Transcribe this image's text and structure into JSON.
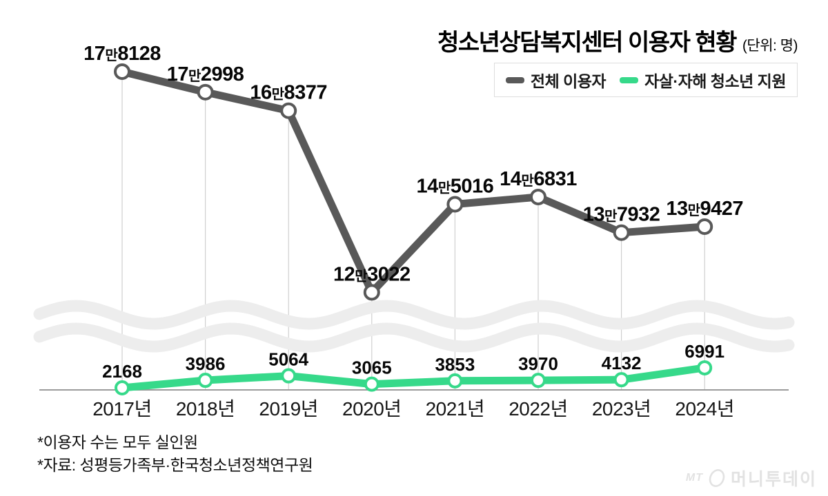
{
  "title": {
    "text": "청소년상담복지센터 이용자 현황",
    "unit": "(단위: 명)"
  },
  "legend": {
    "items": [
      {
        "label": "전체 이용자",
        "color": "#595959"
      },
      {
        "label": "자살·자해 청소년 지원",
        "color": "#36d98a"
      }
    ]
  },
  "chart_data": {
    "type": "line",
    "title": "청소년상담복지센터 이용자 현황",
    "unit": "명",
    "legend_position": "top-right",
    "grid": "vertical-guides",
    "axis_break": true,
    "categories": [
      "2017년",
      "2018년",
      "2019년",
      "2020년",
      "2021년",
      "2022년",
      "2023년",
      "2024년"
    ],
    "series": [
      {
        "name": "전체 이용자",
        "color": "#595959",
        "values": [
          178128,
          172998,
          168377,
          123022,
          145016,
          146831,
          137932,
          139427
        ],
        "label_parts": [
          [
            "17",
            "만",
            "8128"
          ],
          [
            "17",
            "만",
            "2998"
          ],
          [
            "16",
            "만",
            "8377"
          ],
          [
            "12",
            "만",
            "3022"
          ],
          [
            "14",
            "만",
            "5016"
          ],
          [
            "14",
            "만",
            "6831"
          ],
          [
            "13",
            "만",
            "7932"
          ],
          [
            "13",
            "만",
            "9427"
          ]
        ]
      },
      {
        "name": "자살·자해 청소년 지원",
        "color": "#36d98a",
        "values": [
          2168,
          3986,
          5064,
          3065,
          3853,
          3970,
          4132,
          6991
        ],
        "labels": [
          "2168",
          "3986",
          "5064",
          "3065",
          "3853",
          "3970",
          "4132",
          "6991"
        ]
      }
    ]
  },
  "footnotes": [
    "*이용자 수는 모두 실인원",
    "*자료: 성평등가족부·한국청소년정책연구원"
  ],
  "logo": {
    "mt": "MT",
    "text": "머니투데이"
  }
}
